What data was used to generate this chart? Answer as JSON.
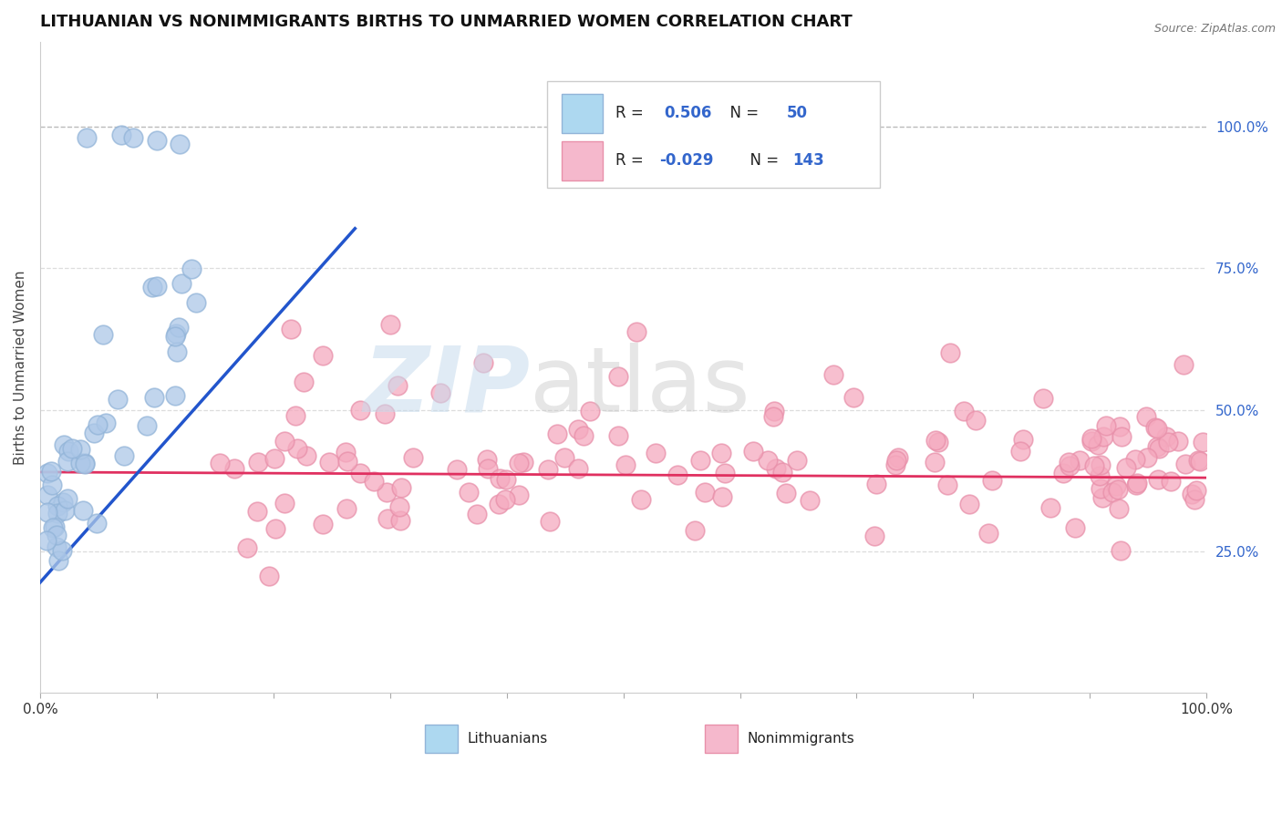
{
  "title": "LITHUANIAN VS NONIMMIGRANTS BIRTHS TO UNMARRIED WOMEN CORRELATION CHART",
  "source": "Source: ZipAtlas.com",
  "ylabel": "Births to Unmarried Women",
  "xlabel": "",
  "xlim": [
    0,
    1
  ],
  "ylim": [
    0.0,
    1.15
  ],
  "right_ytick_labels": [
    "25.0%",
    "50.0%",
    "75.0%",
    "100.0%"
  ],
  "right_ytick_values": [
    0.25,
    0.5,
    0.75,
    1.0
  ],
  "xtick_values": [
    0.0,
    0.1,
    0.2,
    0.3,
    0.4,
    0.5,
    0.6,
    0.7,
    0.8,
    0.9,
    1.0
  ],
  "xtick_labels": [
    "0.0%",
    "",
    "",
    "",
    "",
    "",
    "",
    "",
    "",
    "",
    "100.0%"
  ],
  "blue_fill_color": "#adc8e8",
  "blue_edge_color": "#92b4d8",
  "pink_fill_color": "#f5aabf",
  "pink_edge_color": "#e890aa",
  "blue_line_color": "#2255cc",
  "pink_line_color": "#e03060",
  "dashed_line_color": "#bbbbbb",
  "grid_color": "#dddddd",
  "legend_patch_blue": "#add8f0",
  "legend_patch_pink": "#f5b8cc",
  "ytick_label_color": "#3366cc",
  "title_fontsize": 13,
  "source_fontsize": 9,
  "axis_label_fontsize": 11,
  "tick_fontsize": 11
}
